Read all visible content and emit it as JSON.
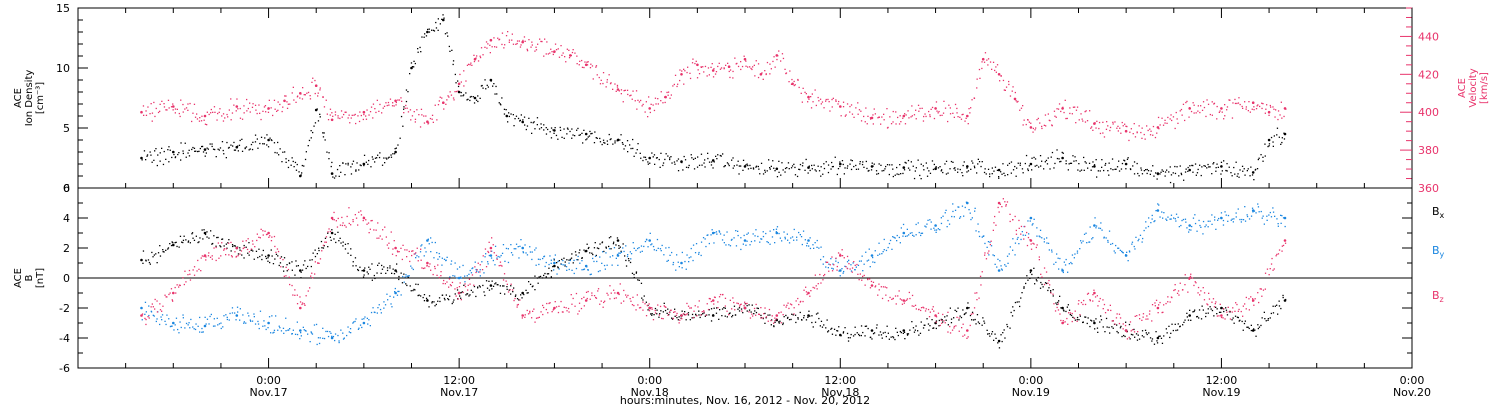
{
  "chart_data": [
    {
      "type": "scatter",
      "panel": "plasma",
      "ylabel_left": [
        "ACE",
        "Ion Density",
        "[cm⁻³]"
      ],
      "ylabel_right": [
        "ACE",
        "Velocity",
        "[km/s]"
      ],
      "ylim_left": [
        0,
        15
      ],
      "ylim_right": [
        360,
        455
      ],
      "yticks_left": [
        "0",
        "5",
        "10",
        "15"
      ],
      "yticks_right": [
        "360",
        "380",
        "400",
        "420",
        "440"
      ],
      "colors": {
        "density": "#000000",
        "velocity": "#e8336b"
      },
      "series": [
        {
          "key": "density",
          "axis": "left",
          "x": [
            -8,
            -6,
            -4,
            -2,
            0,
            2,
            3,
            4,
            6,
            8,
            9,
            10,
            11,
            12,
            13,
            14,
            15,
            16,
            18,
            20,
            22,
            24,
            26,
            28,
            30,
            32,
            34,
            36,
            38,
            40,
            42,
            44,
            46,
            48,
            50,
            52,
            54,
            56,
            58,
            60,
            62,
            63,
            64
          ],
          "y": [
            2.5,
            3.0,
            3.2,
            3.4,
            4.0,
            1.0,
            6.5,
            1.2,
            2.0,
            3.0,
            10.0,
            13.0,
            14.0,
            8.0,
            7.5,
            9.0,
            6.0,
            5.5,
            4.8,
            4.5,
            4.0,
            2.5,
            2.2,
            2.3,
            1.8,
            1.6,
            1.7,
            2.0,
            1.8,
            1.7,
            1.6,
            1.8,
            1.5,
            2.0,
            2.5,
            1.8,
            2.0,
            1.2,
            1.5,
            1.8,
            1.3,
            4.0,
            4.5
          ]
        },
        {
          "key": "velocity",
          "axis": "right",
          "x": [
            -8,
            -6,
            -4,
            -2,
            0,
            1,
            2,
            3,
            4,
            6,
            8,
            10,
            11,
            12,
            13,
            14,
            16,
            18,
            19,
            20,
            22,
            24,
            25,
            26,
            27,
            28,
            29,
            30,
            31,
            32,
            33,
            34,
            36,
            38,
            40,
            42,
            44,
            45,
            46,
            47,
            48,
            50,
            52,
            54,
            56,
            58,
            60,
            62,
            63,
            64
          ],
          "y": [
            400,
            403,
            398,
            403,
            402,
            406,
            410,
            414,
            396,
            400,
            406,
            395,
            405,
            415,
            428,
            438,
            437,
            432,
            430,
            425,
            412,
            402,
            408,
            420,
            425,
            422,
            424,
            428,
            420,
            430,
            415,
            408,
            403,
            397,
            398,
            402,
            398,
            428,
            420,
            407,
            392,
            402,
            394,
            390,
            392,
            402,
            402,
            405,
            400,
            402
          ]
        }
      ]
    },
    {
      "type": "scatter",
      "panel": "magnetic",
      "ylabel_left": [
        "ACE",
        "B",
        "[nT]"
      ],
      "ylim": [
        -6,
        6
      ],
      "yticks": [
        "-6",
        "-4",
        "-2",
        "0",
        "2",
        "4",
        "6"
      ],
      "legend_position": "right",
      "colors": {
        "bx": "#000000",
        "by": "#1a86e0",
        "bz": "#e8336b"
      },
      "series": [
        {
          "key": "bx",
          "name_main": "B",
          "name_sub": "x",
          "x": [
            -8,
            -6,
            -4,
            -2,
            0,
            2,
            4,
            6,
            8,
            10,
            12,
            14,
            16,
            18,
            20,
            22,
            24,
            26,
            28,
            30,
            32,
            34,
            36,
            38,
            40,
            42,
            44,
            46,
            48,
            50,
            52,
            54,
            56,
            58,
            60,
            62,
            64
          ],
          "y": [
            1.2,
            2.2,
            3.0,
            2.0,
            1.5,
            0.5,
            3.0,
            0.5,
            0.5,
            -1.5,
            -1.0,
            -0.5,
            -1.0,
            0.8,
            1.8,
            2.5,
            -2.0,
            -2.5,
            -2.5,
            -2.0,
            -2.8,
            -2.5,
            -3.8,
            -3.5,
            -3.5,
            -3.0,
            -2.0,
            -4.2,
            0.5,
            -2.0,
            -3.0,
            -3.5,
            -4.0,
            -2.5,
            -2.0,
            -3.5,
            -1.5
          ]
        },
        {
          "key": "by",
          "name_main": "B",
          "name_sub": "y",
          "x": [
            -8,
            -6,
            -4,
            -2,
            0,
            2,
            4,
            6,
            8,
            10,
            12,
            14,
            16,
            18,
            20,
            22,
            24,
            26,
            28,
            30,
            32,
            34,
            36,
            38,
            40,
            42,
            44,
            46,
            48,
            50,
            52,
            54,
            56,
            58,
            60,
            62,
            64
          ],
          "y": [
            -2.0,
            -3.0,
            -3.2,
            -2.5,
            -3.0,
            -3.5,
            -4.0,
            -3.0,
            -1.0,
            2.5,
            0.0,
            1.5,
            2.0,
            1.0,
            0.8,
            1.5,
            2.5,
            1.0,
            3.0,
            2.5,
            3.0,
            2.5,
            0.5,
            1.5,
            3.0,
            3.5,
            5.0,
            0.5,
            4.0,
            0.5,
            3.5,
            1.5,
            4.5,
            3.5,
            4.0,
            4.5,
            4.0
          ]
        },
        {
          "key": "bz",
          "name_main": "B",
          "name_sub": "z",
          "x": [
            -8,
            -6,
            -4,
            -2,
            0,
            2,
            4,
            6,
            8,
            10,
            12,
            14,
            16,
            18,
            20,
            22,
            24,
            26,
            28,
            30,
            32,
            34,
            36,
            38,
            40,
            42,
            44,
            46,
            48,
            50,
            52,
            54,
            56,
            58,
            60,
            62,
            64
          ],
          "y": [
            -2.5,
            -1.0,
            1.5,
            2.0,
            3.0,
            -2.0,
            4.0,
            4.0,
            2.0,
            1.0,
            -1.0,
            2.0,
            -2.5,
            -2.0,
            -1.5,
            -1.0,
            -2.0,
            -2.5,
            -1.5,
            -2.0,
            -2.5,
            -1.0,
            1.5,
            -0.5,
            -1.5,
            -2.5,
            -3.5,
            5.0,
            2.5,
            -3.0,
            -1.0,
            -3.5,
            -2.0,
            0.0,
            -2.5,
            -1.5,
            2.5
          ]
        }
      ]
    }
  ],
  "xaxis": {
    "label": "hours:minutes, Nov. 16, 2012 - Nov. 20, 2012",
    "xlim": [
      -12,
      72
    ],
    "ticks": [
      {
        "x": 0,
        "time": "0:00",
        "date": "Nov.17"
      },
      {
        "x": 12,
        "time": "12:00",
        "date": "Nov.17"
      },
      {
        "x": 24,
        "time": "0:00",
        "date": "Nov.18"
      },
      {
        "x": 36,
        "time": "12:00",
        "date": "Nov.18"
      },
      {
        "x": 48,
        "time": "0:00",
        "date": "Nov.19"
      },
      {
        "x": 60,
        "time": "12:00",
        "date": "Nov.19"
      },
      {
        "x": 72,
        "time": "0:00",
        "date": "Nov.20"
      }
    ]
  }
}
